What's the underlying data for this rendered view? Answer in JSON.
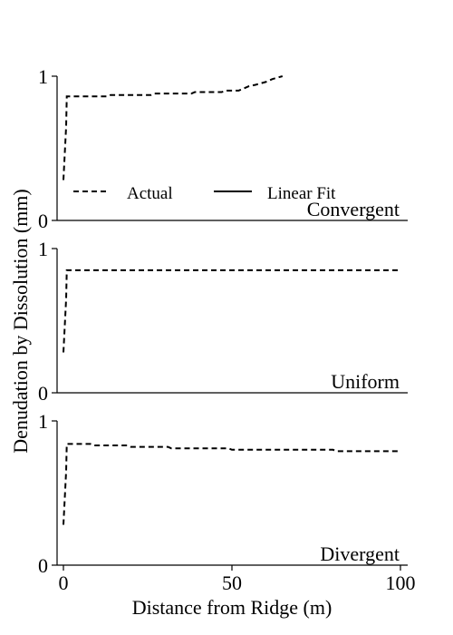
{
  "figure": {
    "ylabel": "Denudation by Dissolution (mm)",
    "xlabel": "Distance from Ridge (m)",
    "x_ticks": [
      "0",
      "50",
      "100"
    ]
  },
  "legend": {
    "actual_label": "Actual",
    "fit_label": "Linear Fit"
  },
  "chart_data": [
    {
      "type": "line",
      "panel_label": "Convergent",
      "xlim": [
        -2,
        102
      ],
      "ylim": [
        0,
        1
      ],
      "y_ticks": [
        "0",
        "1"
      ],
      "grid": false,
      "legend_placement": "lower-left",
      "series": [
        {
          "name": "Actual",
          "style": "dashed",
          "color": "#000000",
          "x": [
            0,
            0.8,
            1,
            13,
            14,
            26,
            27,
            38,
            39,
            47,
            48,
            52,
            53,
            55,
            57,
            60,
            62,
            65
          ],
          "y": [
            0.28,
            0.65,
            0.86,
            0.86,
            0.87,
            0.87,
            0.88,
            0.88,
            0.89,
            0.89,
            0.9,
            0.9,
            0.91,
            0.93,
            0.94,
            0.96,
            0.98,
            1.0
          ]
        }
      ]
    },
    {
      "type": "line",
      "panel_label": "Uniform",
      "xlim": [
        -2,
        102
      ],
      "ylim": [
        0,
        1
      ],
      "y_ticks": [
        "0",
        "1"
      ],
      "grid": false,
      "series": [
        {
          "name": "Actual",
          "style": "dashed",
          "color": "#000000",
          "x": [
            0,
            0.8,
            1,
            100
          ],
          "y": [
            0.28,
            0.65,
            0.85,
            0.85
          ]
        }
      ]
    },
    {
      "type": "line",
      "panel_label": "Divergent",
      "xlim": [
        -2,
        102
      ],
      "ylim": [
        0,
        1
      ],
      "y_ticks": [
        "0",
        "1"
      ],
      "grid": false,
      "series": [
        {
          "name": "Actual",
          "style": "dashed",
          "color": "#000000",
          "x": [
            0,
            0.8,
            1,
            8,
            9,
            19,
            20,
            31,
            32,
            49,
            50,
            80,
            81,
            100
          ],
          "y": [
            0.28,
            0.65,
            0.84,
            0.84,
            0.83,
            0.83,
            0.82,
            0.82,
            0.81,
            0.81,
            0.8,
            0.8,
            0.79,
            0.79
          ]
        }
      ]
    }
  ]
}
